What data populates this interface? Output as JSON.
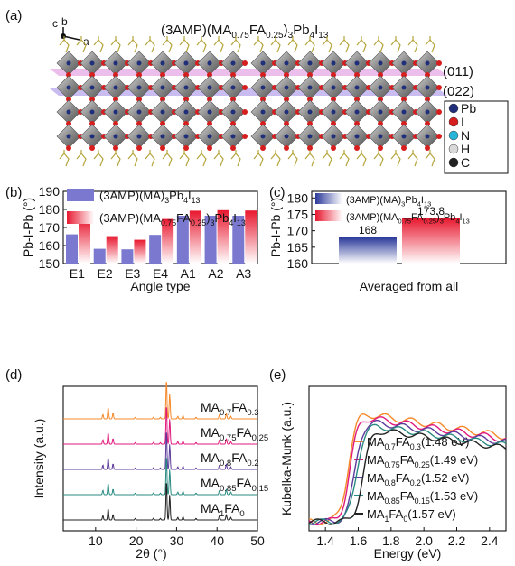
{
  "panels": {
    "a": {
      "label": "(a)",
      "title": "(3AMP)(MA0.75FA0.25)3Pb4I13",
      "title_parts": {
        "pre": "(3AMP)(MA",
        "s1": "0.75",
        "mid": "FA",
        "s2": "0.25",
        "post": ")",
        "s3": "3",
        "post2": "Pb",
        "s4": "4",
        "post3": "I",
        "s5": "13"
      },
      "axes_labels": {
        "c": "c",
        "b": "b",
        "a": "a"
      },
      "plane_labels": [
        "(011)",
        "(022)"
      ],
      "legend": [
        {
          "symbol": "Pb",
          "color": "#1f2f7a"
        },
        {
          "symbol": "I",
          "color": "#d61e1e"
        },
        {
          "symbol": "N",
          "color": "#28b5d8"
        },
        {
          "symbol": "H",
          "color": "#d9d9d9"
        },
        {
          "symbol": "C",
          "color": "#222222"
        }
      ],
      "colors": {
        "octahedron": "#8c8c8c",
        "plane_011": "#e6a8e6",
        "plane_022": "#b7a6ec",
        "organic": "#b5a43a"
      }
    },
    "b": {
      "label": "(b)"
    },
    "c": {
      "label": "(c)"
    },
    "d": {
      "label": "(d)"
    },
    "e": {
      "label": "(e)"
    }
  },
  "chart_data": [
    {
      "panel": "b",
      "type": "bar",
      "categories": [
        "E1",
        "E2",
        "E3",
        "E4",
        "A1",
        "A2",
        "A3"
      ],
      "xlabel": "Angle type",
      "ylabel": "Pb-I-Pb (°)",
      "ylim": [
        150,
        190
      ],
      "yticks": [
        150,
        160,
        170,
        180,
        190
      ],
      "legend_position": "top-left",
      "series": [
        {
          "name": "(3AMP)(MA)3Pb4I13",
          "color": "#7a78cf",
          "values": [
            166.2,
            158.2,
            157.9,
            165.9,
            176.5,
            176.5,
            176.5
          ]
        },
        {
          "name": "(3AMP)(MA0.75FA0.25)3Pb4I13",
          "color": "#e8182f",
          "values": [
            174.8,
            165.2,
            163.2,
            174.7,
            179.3,
            179.6,
            179.4
          ]
        }
      ]
    },
    {
      "panel": "c",
      "type": "bar",
      "categories": [
        "Averaged from all"
      ],
      "xlabel": "Averaged from all",
      "ylabel": "Pb-I-Pb (°)",
      "ylim": [
        160,
        182
      ],
      "yticks": [
        160,
        165,
        170,
        175,
        180
      ],
      "legend_position": "top-left",
      "series": [
        {
          "name": "(3AMP)(MA)3Pb4I13",
          "color": "#2b3a9a",
          "values": [
            168
          ],
          "data_label": "168"
        },
        {
          "name": "(3AMP)(MA0.75FA0.25)3Pb4I13",
          "color": "#e8182f",
          "values": [
            173.8
          ],
          "data_label": "173.8"
        }
      ]
    },
    {
      "panel": "d",
      "type": "line",
      "xlabel": "2θ (°)",
      "ylabel": "Intensity (a.u.)",
      "xlim": [
        2,
        50
      ],
      "xticks": [
        10,
        20,
        30,
        40,
        50
      ],
      "stacked": true,
      "series": [
        {
          "name": "MA0.7FA0.3",
          "base": "MA",
          "sub1": "0.7",
          "fa": "FA",
          "sub2": "0.3",
          "color": "#f5892a",
          "offset": 4
        },
        {
          "name": "MA0.75FA0.25",
          "base": "MA",
          "sub1": "0.75",
          "fa": "FA",
          "sub2": "0.25",
          "color": "#e0197d",
          "offset": 3
        },
        {
          "name": "MA0.8FA0.2",
          "base": "MA",
          "sub1": "0.8",
          "fa": "FA",
          "sub2": "0.2",
          "color": "#5c3b9c",
          "offset": 2
        },
        {
          "name": "MA0.85FA0.15",
          "base": "MA",
          "sub1": "0.85",
          "fa": "FA",
          "sub2": "0.15",
          "color": "#2a8a82",
          "offset": 1
        },
        {
          "name": "MA1FA0",
          "base": "MA",
          "sub1": "1",
          "fa": "FA",
          "sub2": "0",
          "color": "#222222",
          "offset": 0
        }
      ],
      "peaks": [
        {
          "x": 11.8,
          "h": 0.35
        },
        {
          "x": 13.1,
          "h": 0.9
        },
        {
          "x": 14.3,
          "h": 0.45
        },
        {
          "x": 19.8,
          "h": 0.12
        },
        {
          "x": 24.3,
          "h": 0.15
        },
        {
          "x": 26.0,
          "h": 0.12
        },
        {
          "x": 27.5,
          "h": 3.2
        },
        {
          "x": 28.3,
          "h": 2.0
        },
        {
          "x": 30.3,
          "h": 0.2
        },
        {
          "x": 31.6,
          "h": 0.25
        },
        {
          "x": 34.8,
          "h": 0.12
        },
        {
          "x": 40.6,
          "h": 0.35
        },
        {
          "x": 42.3,
          "h": 0.45
        },
        {
          "x": 43.4,
          "h": 0.2
        }
      ]
    },
    {
      "panel": "e",
      "type": "line",
      "xlabel": "Energy (eV)",
      "ylabel": "Kubelka-Munk (a.u.)",
      "xlim": [
        1.3,
        2.5
      ],
      "xticks": [
        1.4,
        1.6,
        1.8,
        2.0,
        2.2,
        2.4
      ],
      "series": [
        {
          "label_base": "MA",
          "sub1": "0.7",
          "fa": "FA",
          "sub2": "0.3",
          "gap": "(1.48 eV)",
          "color": "#f5892a",
          "edge": 1.48
        },
        {
          "label_base": "MA",
          "sub1": "0.75",
          "fa": "FA",
          "sub2": "0.25",
          "gap": "(1.49 eV)",
          "color": "#e0197d",
          "edge": 1.49
        },
        {
          "label_base": "MA",
          "sub1": "0.8",
          "fa": "FA",
          "sub2": "0.2",
          "gap": "(1.52 eV)",
          "color": "#5c3b9c",
          "edge": 1.52
        },
        {
          "label_base": "MA",
          "sub1": "0.85",
          "fa": "FA",
          "sub2": "0.15",
          "gap": "(1.53 eV)",
          "color": "#2a8a82",
          "edge": 1.53
        },
        {
          "label_base": "MA",
          "sub1": "1",
          "fa": "FA",
          "sub2": "0",
          "gap": "(1.57 eV)",
          "color": "#222222",
          "edge": 1.57
        }
      ]
    }
  ]
}
